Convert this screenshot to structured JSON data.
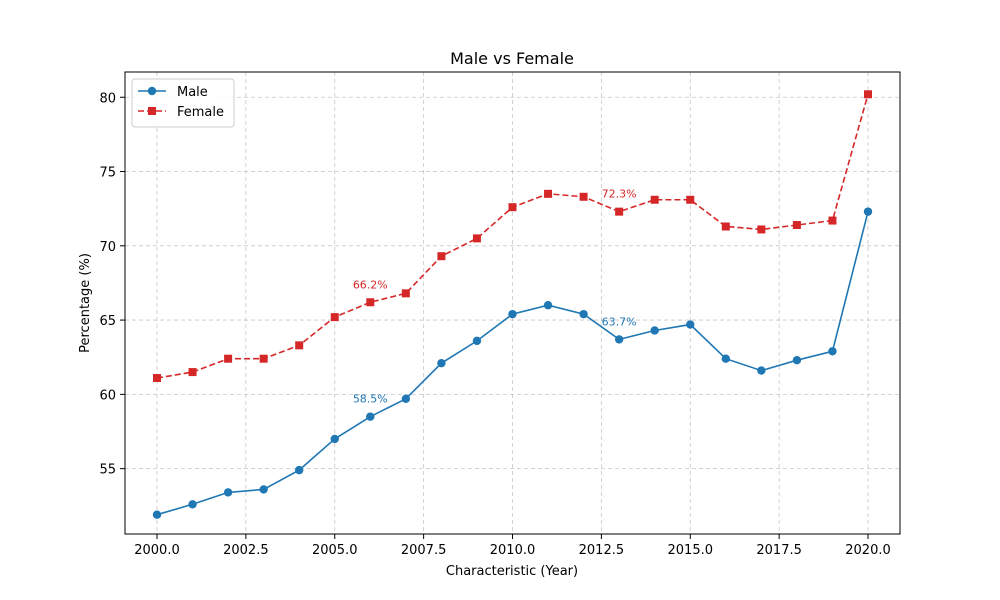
{
  "chart_data": {
    "type": "line",
    "title": "Male vs Female",
    "xlabel": "Characteristic (Year)",
    "ylabel": "Percentage (%)",
    "xlim": [
      1999.1,
      2020.9
    ],
    "ylim": [
      50.6,
      81.7
    ],
    "xticks": [
      2000,
      2002.5,
      2005,
      2007.5,
      2010,
      2012.5,
      2015,
      2017.5,
      2020
    ],
    "xtick_labels": [
      "2000.0",
      "2002.5",
      "2005.0",
      "2007.5",
      "2010.0",
      "2012.5",
      "2015.0",
      "2017.5",
      "2020.0"
    ],
    "yticks": [
      55,
      60,
      65,
      70,
      75,
      80
    ],
    "ytick_labels": [
      "55",
      "60",
      "65",
      "70",
      "75",
      "80"
    ],
    "grid": true,
    "legend": "top-left",
    "x": [
      2000,
      2001,
      2002,
      2003,
      2004,
      2005,
      2006,
      2007,
      2008,
      2009,
      2010,
      2011,
      2012,
      2013,
      2014,
      2015,
      2016,
      2017,
      2018,
      2019,
      2020
    ],
    "series": [
      {
        "name": "Male",
        "color": "#1f77b4",
        "marker": "circle",
        "linestyle": "solid",
        "values": [
          51.9,
          52.6,
          53.4,
          53.6,
          54.9,
          57.0,
          58.5,
          59.7,
          62.1,
          63.6,
          65.4,
          66.0,
          65.4,
          63.7,
          64.3,
          64.7,
          62.4,
          61.6,
          62.3,
          62.9,
          72.3
        ]
      },
      {
        "name": "Female",
        "color": "#d62728",
        "marker": "square",
        "linestyle": "dashed",
        "values": [
          61.1,
          61.5,
          62.4,
          62.4,
          63.3,
          65.2,
          66.2,
          66.8,
          69.3,
          70.5,
          72.6,
          73.5,
          73.3,
          72.3,
          73.1,
          73.1,
          71.3,
          71.1,
          71.4,
          71.7,
          80.2
        ]
      }
    ],
    "annotations": [
      {
        "text": "58.5%",
        "x": 2006,
        "y": 58.5,
        "series": "Male",
        "color": "#1f77b4"
      },
      {
        "text": "63.7%",
        "x": 2013,
        "y": 63.7,
        "series": "Male",
        "color": "#1f77b4"
      },
      {
        "text": "66.2%",
        "x": 2006,
        "y": 66.2,
        "series": "Female",
        "color": "#d62728"
      },
      {
        "text": "72.3%",
        "x": 2013,
        "y": 72.3,
        "series": "Female",
        "color": "#d62728"
      }
    ]
  }
}
